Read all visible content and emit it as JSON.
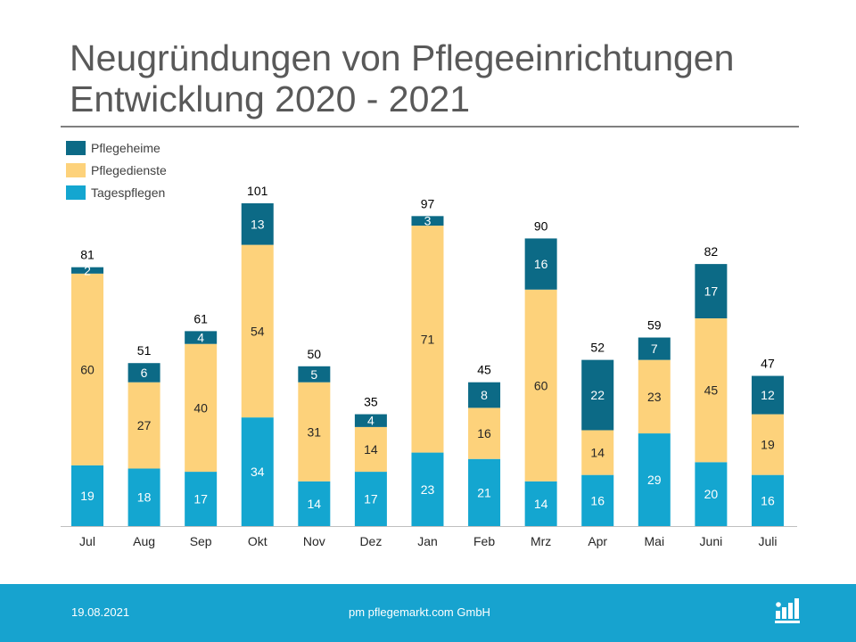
{
  "colors": {
    "pflegeheime": "#0c6a86",
    "pflegedienste": "#fdd27b",
    "tagespflegen": "#14a6d0",
    "footer": "#17a3cf"
  },
  "chart_data": {
    "type": "bar",
    "stacked": true,
    "title": "Neugründungen von Pflegeeinrichtungen\nEntwicklung 2020 - 2021",
    "categories": [
      "Jul",
      "Aug",
      "Sep",
      "Okt",
      "Nov",
      "Dez",
      "Jan",
      "Feb",
      "Mrz",
      "Apr",
      "Mai",
      "Juni",
      "Juli"
    ],
    "series": [
      {
        "name": "Tagespflegen",
        "values": [
          19,
          18,
          17,
          34,
          14,
          17,
          23,
          21,
          14,
          16,
          29,
          20,
          16
        ]
      },
      {
        "name": "Pflegedienste",
        "values": [
          60,
          27,
          40,
          54,
          31,
          14,
          71,
          16,
          60,
          14,
          23,
          45,
          19
        ]
      },
      {
        "name": "Pflegeheime",
        "values": [
          2,
          6,
          4,
          13,
          5,
          4,
          3,
          8,
          16,
          22,
          7,
          17,
          12
        ]
      }
    ],
    "totals": [
      81,
      51,
      61,
      101,
      50,
      35,
      97,
      45,
      90,
      52,
      59,
      82,
      47
    ],
    "legend_entries": [
      "Pflegeheime",
      "Pflegedienste",
      "Tagespflegen"
    ],
    "legend_position": "top-left",
    "grid": false,
    "ylim": [
      0,
      101
    ]
  },
  "footer": {
    "date": "19.08.2021",
    "company": "pm pflegemarkt.com GmbH"
  },
  "logo_icon": "pflegemarkt-logo-icon"
}
